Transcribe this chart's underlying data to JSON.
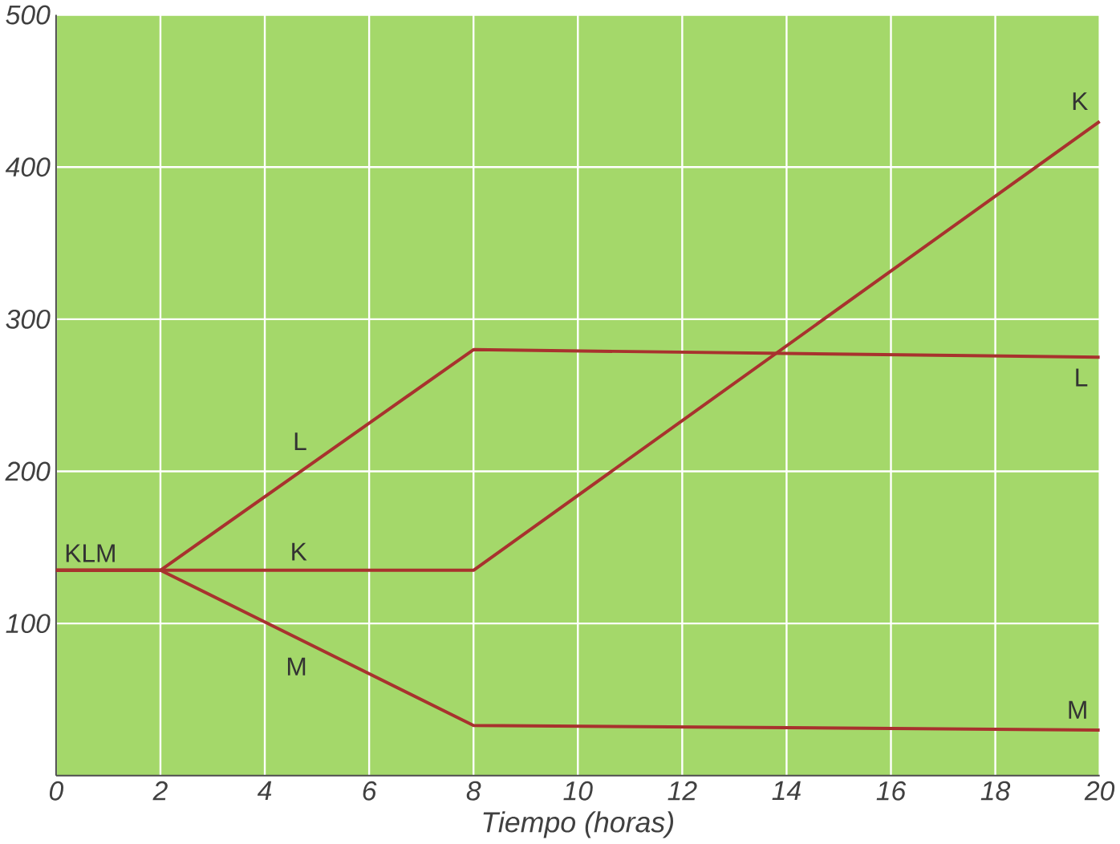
{
  "chart_data": {
    "type": "line",
    "xlabel": "Tiempo (horas)",
    "x": [
      0,
      2,
      8,
      20
    ],
    "series": [
      {
        "name": "K",
        "color": "#a8322e",
        "values": [
          135,
          135,
          135,
          430
        ]
      },
      {
        "name": "L",
        "color": "#a8322e",
        "values": [
          135,
          135,
          280,
          275
        ]
      },
      {
        "name": "M",
        "color": "#a8322e",
        "values": [
          135,
          135,
          33,
          30
        ]
      }
    ],
    "xlim": [
      0,
      20
    ],
    "ylim": [
      0,
      500
    ],
    "xticks": [
      0,
      2,
      4,
      6,
      8,
      10,
      12,
      14,
      16,
      18,
      20
    ],
    "yticks": [
      100,
      200,
      300,
      400,
      500
    ],
    "grid": true,
    "marker": "none",
    "line_style": "solid",
    "annotations": [
      "KLM"
    ]
  }
}
